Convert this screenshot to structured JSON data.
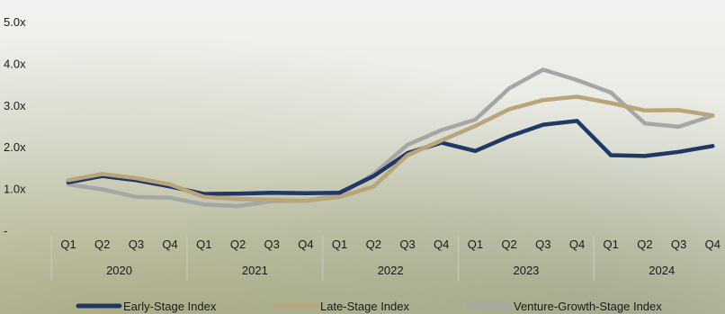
{
  "chart_data": {
    "type": "line",
    "title": "",
    "xlabel": "",
    "ylabel": "",
    "ylim": [
      0,
      5
    ],
    "y_ticks": [
      {
        "value": 0,
        "label": "-"
      },
      {
        "value": 1,
        "label": "1.0x"
      },
      {
        "value": 2,
        "label": "2.0x"
      },
      {
        "value": 3,
        "label": "3.0x"
      },
      {
        "value": 4,
        "label": "4.0x"
      },
      {
        "value": 5,
        "label": "5.0x"
      }
    ],
    "quarters": [
      "Q1",
      "Q2",
      "Q3",
      "Q4",
      "Q1",
      "Q2",
      "Q3",
      "Q4",
      "Q1",
      "Q2",
      "Q3",
      "Q4",
      "Q1",
      "Q2",
      "Q3",
      "Q4",
      "Q1",
      "Q2",
      "Q3",
      "Q4"
    ],
    "years": [
      "2020",
      "2021",
      "2022",
      "2023",
      "2024"
    ],
    "grid": false,
    "legend_position": "bottom",
    "series": [
      {
        "name": "Early-Stage Index",
        "color": "#1f3864",
        "values": [
          1.15,
          1.3,
          1.2,
          1.05,
          0.87,
          0.88,
          0.9,
          0.89,
          0.9,
          1.3,
          1.85,
          2.1,
          1.9,
          2.25,
          2.53,
          2.62,
          1.8,
          1.78,
          1.88,
          2.02
        ]
      },
      {
        "name": "Late-Stage Index",
        "color": "#b8a57a",
        "values": [
          1.2,
          1.35,
          1.25,
          1.1,
          0.8,
          0.75,
          0.73,
          0.71,
          0.8,
          1.05,
          1.8,
          2.15,
          2.5,
          2.9,
          3.12,
          3.2,
          3.05,
          2.87,
          2.88,
          2.75
        ]
      },
      {
        "name": "Venture-Growth-Stage Index",
        "color": "#a6a6a6",
        "values": [
          1.1,
          0.98,
          0.8,
          0.78,
          0.62,
          0.58,
          0.7,
          0.71,
          0.85,
          1.35,
          2.05,
          2.4,
          2.65,
          3.4,
          3.85,
          3.6,
          3.3,
          2.56,
          2.48,
          2.75
        ]
      }
    ]
  },
  "style": {
    "background_top": "#f2f3f0",
    "background_mid": "#d9dccf",
    "background_bottom": "#9aa07a"
  }
}
